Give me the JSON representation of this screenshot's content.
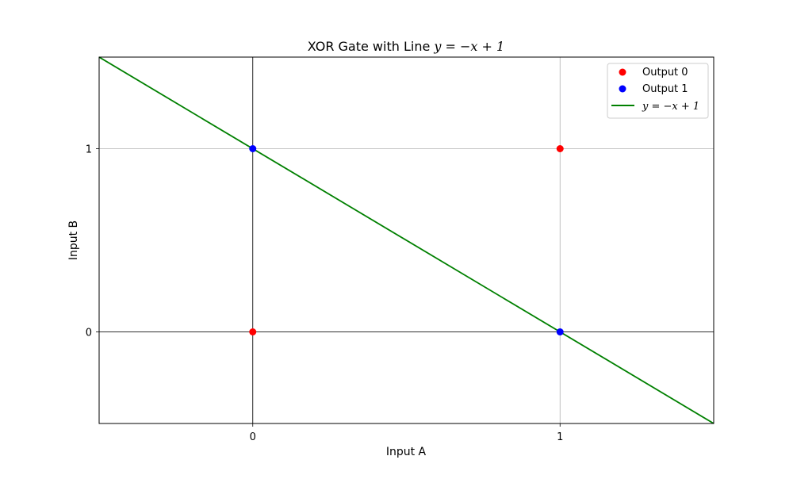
{
  "chart_data": {
    "type": "scatter",
    "title_prefix": "XOR Gate with Line ",
    "title_math": "y = −x + 1",
    "xlabel": "Input A",
    "ylabel": "Input B",
    "xlim": [
      -0.5,
      1.5
    ],
    "ylim": [
      -0.5,
      1.5
    ],
    "xticks": [
      0,
      1
    ],
    "yticks": [
      0,
      1
    ],
    "grid": true,
    "reference_lines": {
      "x": 0,
      "y": 0,
      "color": "#000000"
    },
    "legend_position": "upper right",
    "series": [
      {
        "name": "Output 0",
        "kind": "scatter",
        "color": "#ff0000",
        "points": [
          [
            0,
            0
          ],
          [
            1,
            1
          ]
        ]
      },
      {
        "name": "Output 1",
        "kind": "scatter",
        "color": "#0000ff",
        "points": [
          [
            0,
            1
          ],
          [
            1,
            0
          ]
        ]
      },
      {
        "name": "y = −x + 1",
        "kind": "line",
        "color": "#008000",
        "slope": -1,
        "intercept": 1
      }
    ]
  }
}
